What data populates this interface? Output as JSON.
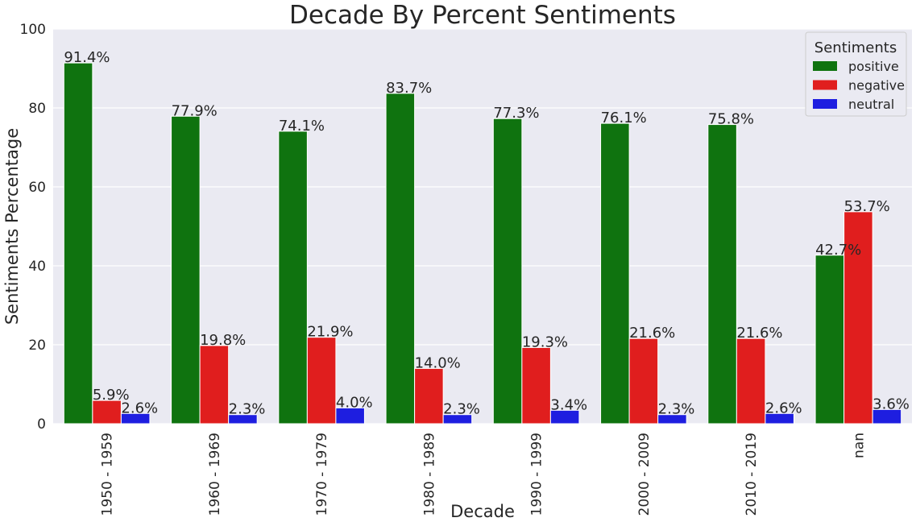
{
  "chart_data": {
    "type": "bar",
    "title": "Decade By Percent Sentiments",
    "xlabel": "Decade",
    "ylabel": "Sentiments Percentage",
    "ylim": [
      0,
      100
    ],
    "yticks": [
      0,
      20,
      40,
      60,
      80,
      100
    ],
    "grid": true,
    "legend": {
      "title": "Sentiments",
      "placement": "top-right"
    },
    "categories": [
      "1950 - 1959",
      "1960 - 1969",
      "1970 - 1979",
      "1980 - 1989",
      "1990 - 1999",
      "2000 - 2009",
      "2010 - 2019",
      "nan"
    ],
    "series": [
      {
        "name": "positive",
        "color": "#0f730f",
        "values": [
          91.4,
          77.9,
          74.1,
          83.7,
          77.3,
          76.1,
          75.8,
          42.7
        ],
        "labels": [
          "91.4%",
          "77.9%",
          "74.1%",
          "83.7%",
          "77.3%",
          "76.1%",
          "75.8%",
          "42.7%"
        ]
      },
      {
        "name": "negative",
        "color": "#e01e1e",
        "values": [
          5.9,
          19.8,
          21.9,
          14.0,
          19.3,
          21.6,
          21.6,
          53.7
        ],
        "labels": [
          "5.9%",
          "19.8%",
          "21.9%",
          "14.0%",
          "19.3%",
          "21.6%",
          "21.6%",
          "53.7%"
        ]
      },
      {
        "name": "neutral",
        "color": "#1e1ee0",
        "values": [
          2.6,
          2.3,
          4.0,
          2.3,
          3.4,
          2.3,
          2.6,
          3.6
        ],
        "labels": [
          "2.6%",
          "2.3%",
          "4.0%",
          "2.3%",
          "3.4%",
          "2.3%",
          "2.6%",
          "3.6%"
        ]
      }
    ]
  }
}
